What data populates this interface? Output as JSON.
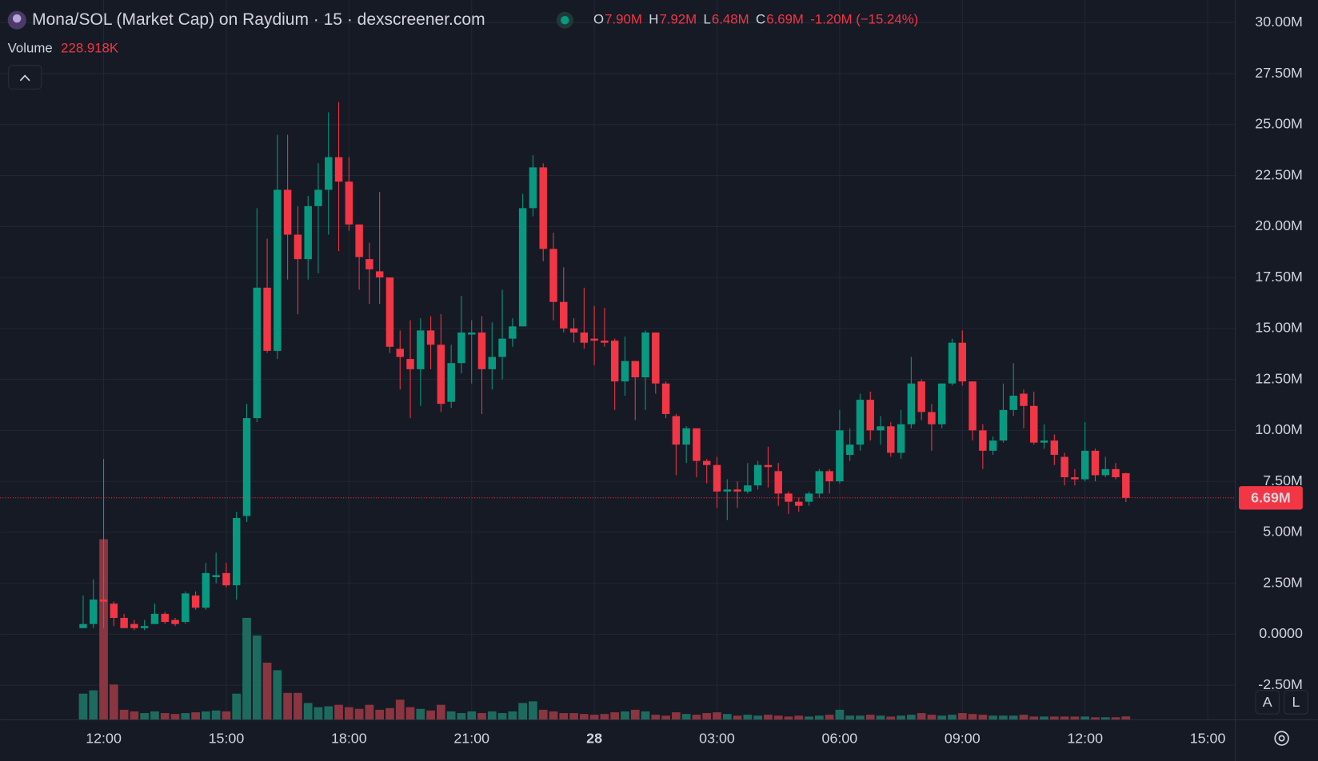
{
  "chart_data": {
    "type": "candlestick",
    "title": "Mona/SOL (Market Cap) on Raydium · 15 · dexscreener.com",
    "ohlc_legend": [
      {
        "label": "O",
        "value": "7.90M"
      },
      {
        "label": "H",
        "value": "7.92M"
      },
      {
        "label": "L",
        "value": "6.48M"
      },
      {
        "label": "C",
        "value": "6.69M"
      }
    ],
    "change": "-1.20M (−15.24%)",
    "volume_title": "Volume",
    "volume_legend": "228.918K",
    "scale_buttons": [
      "A",
      "L"
    ],
    "up_color": "#089981",
    "down_color": "#f23645",
    "volume_up_color": "#1d6b5f",
    "volume_down_color": "#8a3540",
    "grid": true,
    "xlim": [
      9.47,
      39.68
    ],
    "xticks": [
      {
        "value": 12,
        "label": "12:00"
      },
      {
        "value": 15,
        "label": "15:00"
      },
      {
        "value": 18,
        "label": "18:00"
      },
      {
        "value": 21,
        "label": "21:00"
      },
      {
        "value": 24,
        "label": "28"
      },
      {
        "value": 27,
        "label": "03:00"
      },
      {
        "value": 30,
        "label": "06:00"
      },
      {
        "value": 33,
        "label": "09:00"
      },
      {
        "value": 36,
        "label": "12:00"
      },
      {
        "value": 39,
        "label": "15:00"
      }
    ],
    "ylim": [
      -4.2,
      31.11
    ],
    "yticks": [
      {
        "value": 30,
        "label": "30.00M"
      },
      {
        "value": 27.5,
        "label": "27.50M"
      },
      {
        "value": 25,
        "label": "25.00M"
      },
      {
        "value": 22.5,
        "label": "22.50M"
      },
      {
        "value": 20,
        "label": "20.00M"
      },
      {
        "value": 17.5,
        "label": "17.50M"
      },
      {
        "value": 15,
        "label": "15.00M"
      },
      {
        "value": 12.5,
        "label": "12.50M"
      },
      {
        "value": 10,
        "label": "10.00M"
      },
      {
        "value": 7.5,
        "label": "7.50M"
      },
      {
        "value": 5,
        "label": "5.00M"
      },
      {
        "value": 2.5,
        "label": "2.50M"
      },
      {
        "value": 0,
        "label": "0.0000"
      },
      {
        "value": -2.5,
        "label": "-2.50M"
      }
    ],
    "last_price": {
      "value": 6.69,
      "label": "6.69M"
    },
    "x": [
      11.5,
      11.75,
      12,
      12.25,
      12.5,
      12.75,
      13,
      13.25,
      13.5,
      13.75,
      14,
      14.25,
      14.5,
      14.75,
      15,
      15.25,
      15.5,
      15.75,
      16,
      16.25,
      16.5,
      16.75,
      17,
      17.25,
      17.5,
      17.75,
      18,
      18.25,
      18.5,
      18.75,
      19,
      19.25,
      19.5,
      19.75,
      20,
      20.25,
      20.5,
      20.75,
      21,
      21.25,
      21.5,
      21.75,
      22,
      22.25,
      22.5,
      22.75,
      23,
      23.25,
      23.5,
      23.75,
      24,
      24.25,
      24.5,
      24.75,
      25,
      25.25,
      25.5,
      25.75,
      26,
      26.25,
      26.5,
      26.75,
      27,
      27.25,
      27.5,
      27.75,
      28,
      28.25,
      28.5,
      28.75,
      29,
      29.25,
      29.5,
      29.75,
      30,
      30.25,
      30.5,
      30.75,
      31,
      31.25,
      31.5,
      31.75,
      32,
      32.25,
      32.5,
      32.75,
      33,
      33.25,
      33.5,
      33.75,
      34,
      34.25,
      34.5,
      34.75,
      35,
      35.25,
      35.5,
      35.75,
      36,
      36.25,
      36.5,
      36.75,
      37
    ],
    "open": [
      0.3,
      0.5,
      1.7,
      1.5,
      0.8,
      0.5,
      0.3,
      0.5,
      1.0,
      0.7,
      0.6,
      1.9,
      1.3,
      2.8,
      3.0,
      2.4,
      5.8,
      10.6,
      17.0,
      13.9,
      21.8,
      19.6,
      18.4,
      21.0,
      21.8,
      23.4,
      22.2,
      20.1,
      18.4,
      17.8,
      17.5,
      14.0,
      13.5,
      13.0,
      14.9,
      14.2,
      11.4,
      13.3,
      14.7,
      14.8,
      13.0,
      13.6,
      14.5,
      15.1,
      20.9,
      22.9,
      18.9,
      16.3,
      15.0,
      14.8,
      14.5,
      14.4,
      14.4,
      12.4,
      13.4,
      12.6,
      14.8,
      12.3,
      10.7,
      9.3,
      10.1,
      8.5,
      8.3,
      7.0,
      7.1,
      7.0,
      7.3,
      8.3,
      8.0,
      6.9,
      6.5,
      6.5,
      6.9,
      8.0,
      7.5,
      8.8,
      9.3,
      11.5,
      10.0,
      10.2,
      8.9,
      10.3,
      12.4,
      10.9,
      10.3,
      12.3,
      14.3,
      12.4,
      10.0,
      9.0,
      9.5,
      11.0,
      11.8,
      11.2,
      9.4,
      9.5,
      8.7,
      7.7,
      7.6,
      9.0,
      7.8,
      8.1,
      7.9
    ],
    "high": [
      1.9,
      2.7,
      8.6,
      1.6,
      1.0,
      0.7,
      0.7,
      1.5,
      1.1,
      0.8,
      2.1,
      2.1,
      3.5,
      4.0,
      3.5,
      6.0,
      11.3,
      20.9,
      19.4,
      24.5,
      24.5,
      21.0,
      21.5,
      23.1,
      25.6,
      26.1,
      23.4,
      20.1,
      19.2,
      21.7,
      17.5,
      14.9,
      15.4,
      15.5,
      15.6,
      15.7,
      14.2,
      16.6,
      15.4,
      15.6,
      15.3,
      16.9,
      15.5,
      21.6,
      23.5,
      23.1,
      19.7,
      18.0,
      15.5,
      17.0,
      16.1,
      16.0,
      14.5,
      14.6,
      13.4,
      14.9,
      14.8,
      12.4,
      10.8,
      10.2,
      10.1,
      8.6,
      8.7,
      7.6,
      7.5,
      8.4,
      8.5,
      9.2,
      8.4,
      7.0,
      6.7,
      7.0,
      8.1,
      8.1,
      11.0,
      10.1,
      11.8,
      11.9,
      10.7,
      10.4,
      11.0,
      13.6,
      12.5,
      11.3,
      12.3,
      14.5,
      14.9,
      12.4,
      10.3,
      9.7,
      12.3,
      13.3,
      12.0,
      11.9,
      10.3,
      9.8,
      8.9,
      8.1,
      10.4,
      9.1,
      8.7,
      8.4,
      7.92
    ],
    "low": [
      0.3,
      0.3,
      0.3,
      0.4,
      0.3,
      0.2,
      0.2,
      0.5,
      0.5,
      0.4,
      0.5,
      1.2,
      1.2,
      2.5,
      2.3,
      1.7,
      5.5,
      10.4,
      13.8,
      13.5,
      17.4,
      15.7,
      17.4,
      17.7,
      19.6,
      18.8,
      19.8,
      16.9,
      16.2,
      16.2,
      13.8,
      12.0,
      10.6,
      11.2,
      13.0,
      10.9,
      11.1,
      12.8,
      12.3,
      10.8,
      12.0,
      12.5,
      14.1,
      15.1,
      20.5,
      18.3,
      15.4,
      14.8,
      14.3,
      14.0,
      13.2,
      14.1,
      11.0,
      11.7,
      10.5,
      11.0,
      11.8,
      10.6,
      7.8,
      8.4,
      7.7,
      7.4,
      6.2,
      5.6,
      6.2,
      6.9,
      7.1,
      7.2,
      6.3,
      5.9,
      6.0,
      6.3,
      6.7,
      6.9,
      7.4,
      8.5,
      9.0,
      9.5,
      9.3,
      8.7,
      8.6,
      10.1,
      10.5,
      9.0,
      10.1,
      12.2,
      12.2,
      9.5,
      8.1,
      8.8,
      9.4,
      10.7,
      10.1,
      9.3,
      9.1,
      8.3,
      7.3,
      7.3,
      7.5,
      7.5,
      7.7,
      7.6,
      6.48
    ],
    "close": [
      0.5,
      1.7,
      1.6,
      0.8,
      0.3,
      0.3,
      0.4,
      1.0,
      0.6,
      0.5,
      2.0,
      1.3,
      3.0,
      2.9,
      2.4,
      5.7,
      10.6,
      17.0,
      13.9,
      21.8,
      19.6,
      18.4,
      21.0,
      21.8,
      23.4,
      22.2,
      20.1,
      18.5,
      17.9,
      17.5,
      14.1,
      13.6,
      13.0,
      14.9,
      14.2,
      11.3,
      13.3,
      14.8,
      14.8,
      13.0,
      13.6,
      14.5,
      15.1,
      20.9,
      22.9,
      18.9,
      16.3,
      15.0,
      14.8,
      14.3,
      14.4,
      14.3,
      12.4,
      13.4,
      12.6,
      14.8,
      12.3,
      10.8,
      9.3,
      10.1,
      8.5,
      8.3,
      7.0,
      7.1,
      7.0,
      7.3,
      8.3,
      8.2,
      6.9,
      6.5,
      6.3,
      6.9,
      8.0,
      7.5,
      10.0,
      9.3,
      11.5,
      10.0,
      10.2,
      8.9,
      10.3,
      12.3,
      10.9,
      10.3,
      12.3,
      14.3,
      12.4,
      10.0,
      9.0,
      9.5,
      11.0,
      11.7,
      11.2,
      9.4,
      9.5,
      8.8,
      7.7,
      7.6,
      9.0,
      7.8,
      8.1,
      7.7,
      6.69
    ],
    "volume": [
      1740,
      1960,
      12000,
      2350,
      670,
      560,
      450,
      560,
      450,
      390,
      450,
      500,
      560,
      620,
      560,
      1740,
      6780,
      5600,
      3800,
      3300,
      1790,
      1790,
      1120,
      840,
      900,
      1000,
      840,
      730,
      1000,
      670,
      780,
      1340,
      840,
      730,
      620,
      1000,
      560,
      450,
      560,
      450,
      560,
      450,
      560,
      1120,
      1230,
      670,
      560,
      450,
      450,
      390,
      340,
      390,
      500,
      560,
      670,
      560,
      340,
      280,
      500,
      390,
      340,
      450,
      500,
      390,
      280,
      340,
      280,
      340,
      280,
      220,
      280,
      220,
      280,
      340,
      670,
      280,
      280,
      340,
      280,
      220,
      280,
      340,
      450,
      340,
      280,
      340,
      450,
      390,
      340,
      280,
      280,
      280,
      340,
      220,
      220,
      220,
      220,
      220,
      220,
      170,
      170,
      170,
      228.918
    ]
  }
}
